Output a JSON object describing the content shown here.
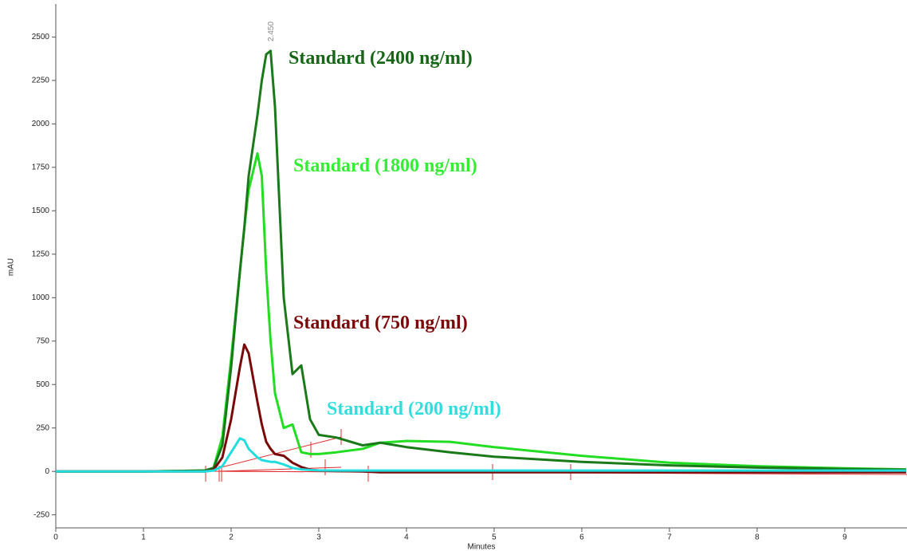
{
  "chart_data": {
    "type": "line",
    "x_label": "Minutes",
    "y_label": "mAU",
    "peak_label": "2.450",
    "x": [
      0,
      1,
      1.7,
      1.8,
      1.9,
      2.0,
      2.1,
      2.15,
      2.2,
      2.3,
      2.35,
      2.4,
      2.45,
      2.5,
      2.6,
      2.7,
      2.8,
      2.9,
      3.0,
      3.2,
      3.5,
      3.7,
      4.0,
      4.5,
      5,
      6,
      7,
      8,
      9,
      9.7
    ],
    "series": [
      {
        "name": "Standard (2400 ng/ml)",
        "color": "#1a7a1a",
        "label_color": "#176617",
        "values": [
          0,
          0,
          5,
          20,
          150,
          600,
          1150,
          1400,
          1700,
          2050,
          2250,
          2400,
          2420,
          2100,
          1000,
          560,
          610,
          300,
          210,
          195,
          150,
          165,
          140,
          110,
          85,
          55,
          35,
          22,
          14,
          10
        ]
      },
      {
        "name": "Standard (1800 ng/ml)",
        "color": "#22dd22",
        "label_color": "#33ee33",
        "values": [
          0,
          0,
          5,
          20,
          200,
          650,
          1150,
          1400,
          1620,
          1830,
          1700,
          1150,
          750,
          450,
          250,
          270,
          110,
          100,
          100,
          110,
          130,
          165,
          175,
          170,
          140,
          90,
          50,
          30,
          18,
          12
        ]
      },
      {
        "name": "Standard (750 ng/ml)",
        "color": "#7a0a0a",
        "label_color": "#7a0a0a",
        "values": [
          0,
          0,
          0,
          10,
          80,
          300,
          600,
          730,
          680,
          400,
          270,
          170,
          130,
          100,
          90,
          50,
          25,
          10,
          5,
          2,
          0,
          -5,
          -5,
          -5,
          -5,
          -5,
          -5,
          -5,
          -5,
          -5
        ]
      },
      {
        "name": "Standard (200 ng/ml)",
        "color": "#22dddd",
        "label_color": "#33dddd",
        "values": [
          0,
          0,
          0,
          5,
          30,
          110,
          190,
          180,
          130,
          80,
          65,
          60,
          55,
          55,
          40,
          20,
          12,
          8,
          6,
          5,
          5,
          5,
          5,
          5,
          5,
          5,
          5,
          5,
          5,
          5
        ]
      }
    ],
    "xlim": [
      0,
      9.71
    ],
    "ylim": [
      -325,
      2690
    ],
    "xticks": [
      0,
      1,
      2,
      3,
      4,
      5,
      6,
      7,
      8,
      9
    ],
    "yticks": [
      -250,
      0,
      250,
      500,
      750,
      1000,
      1250,
      1500,
      1750,
      2000,
      2250,
      2500
    ]
  }
}
